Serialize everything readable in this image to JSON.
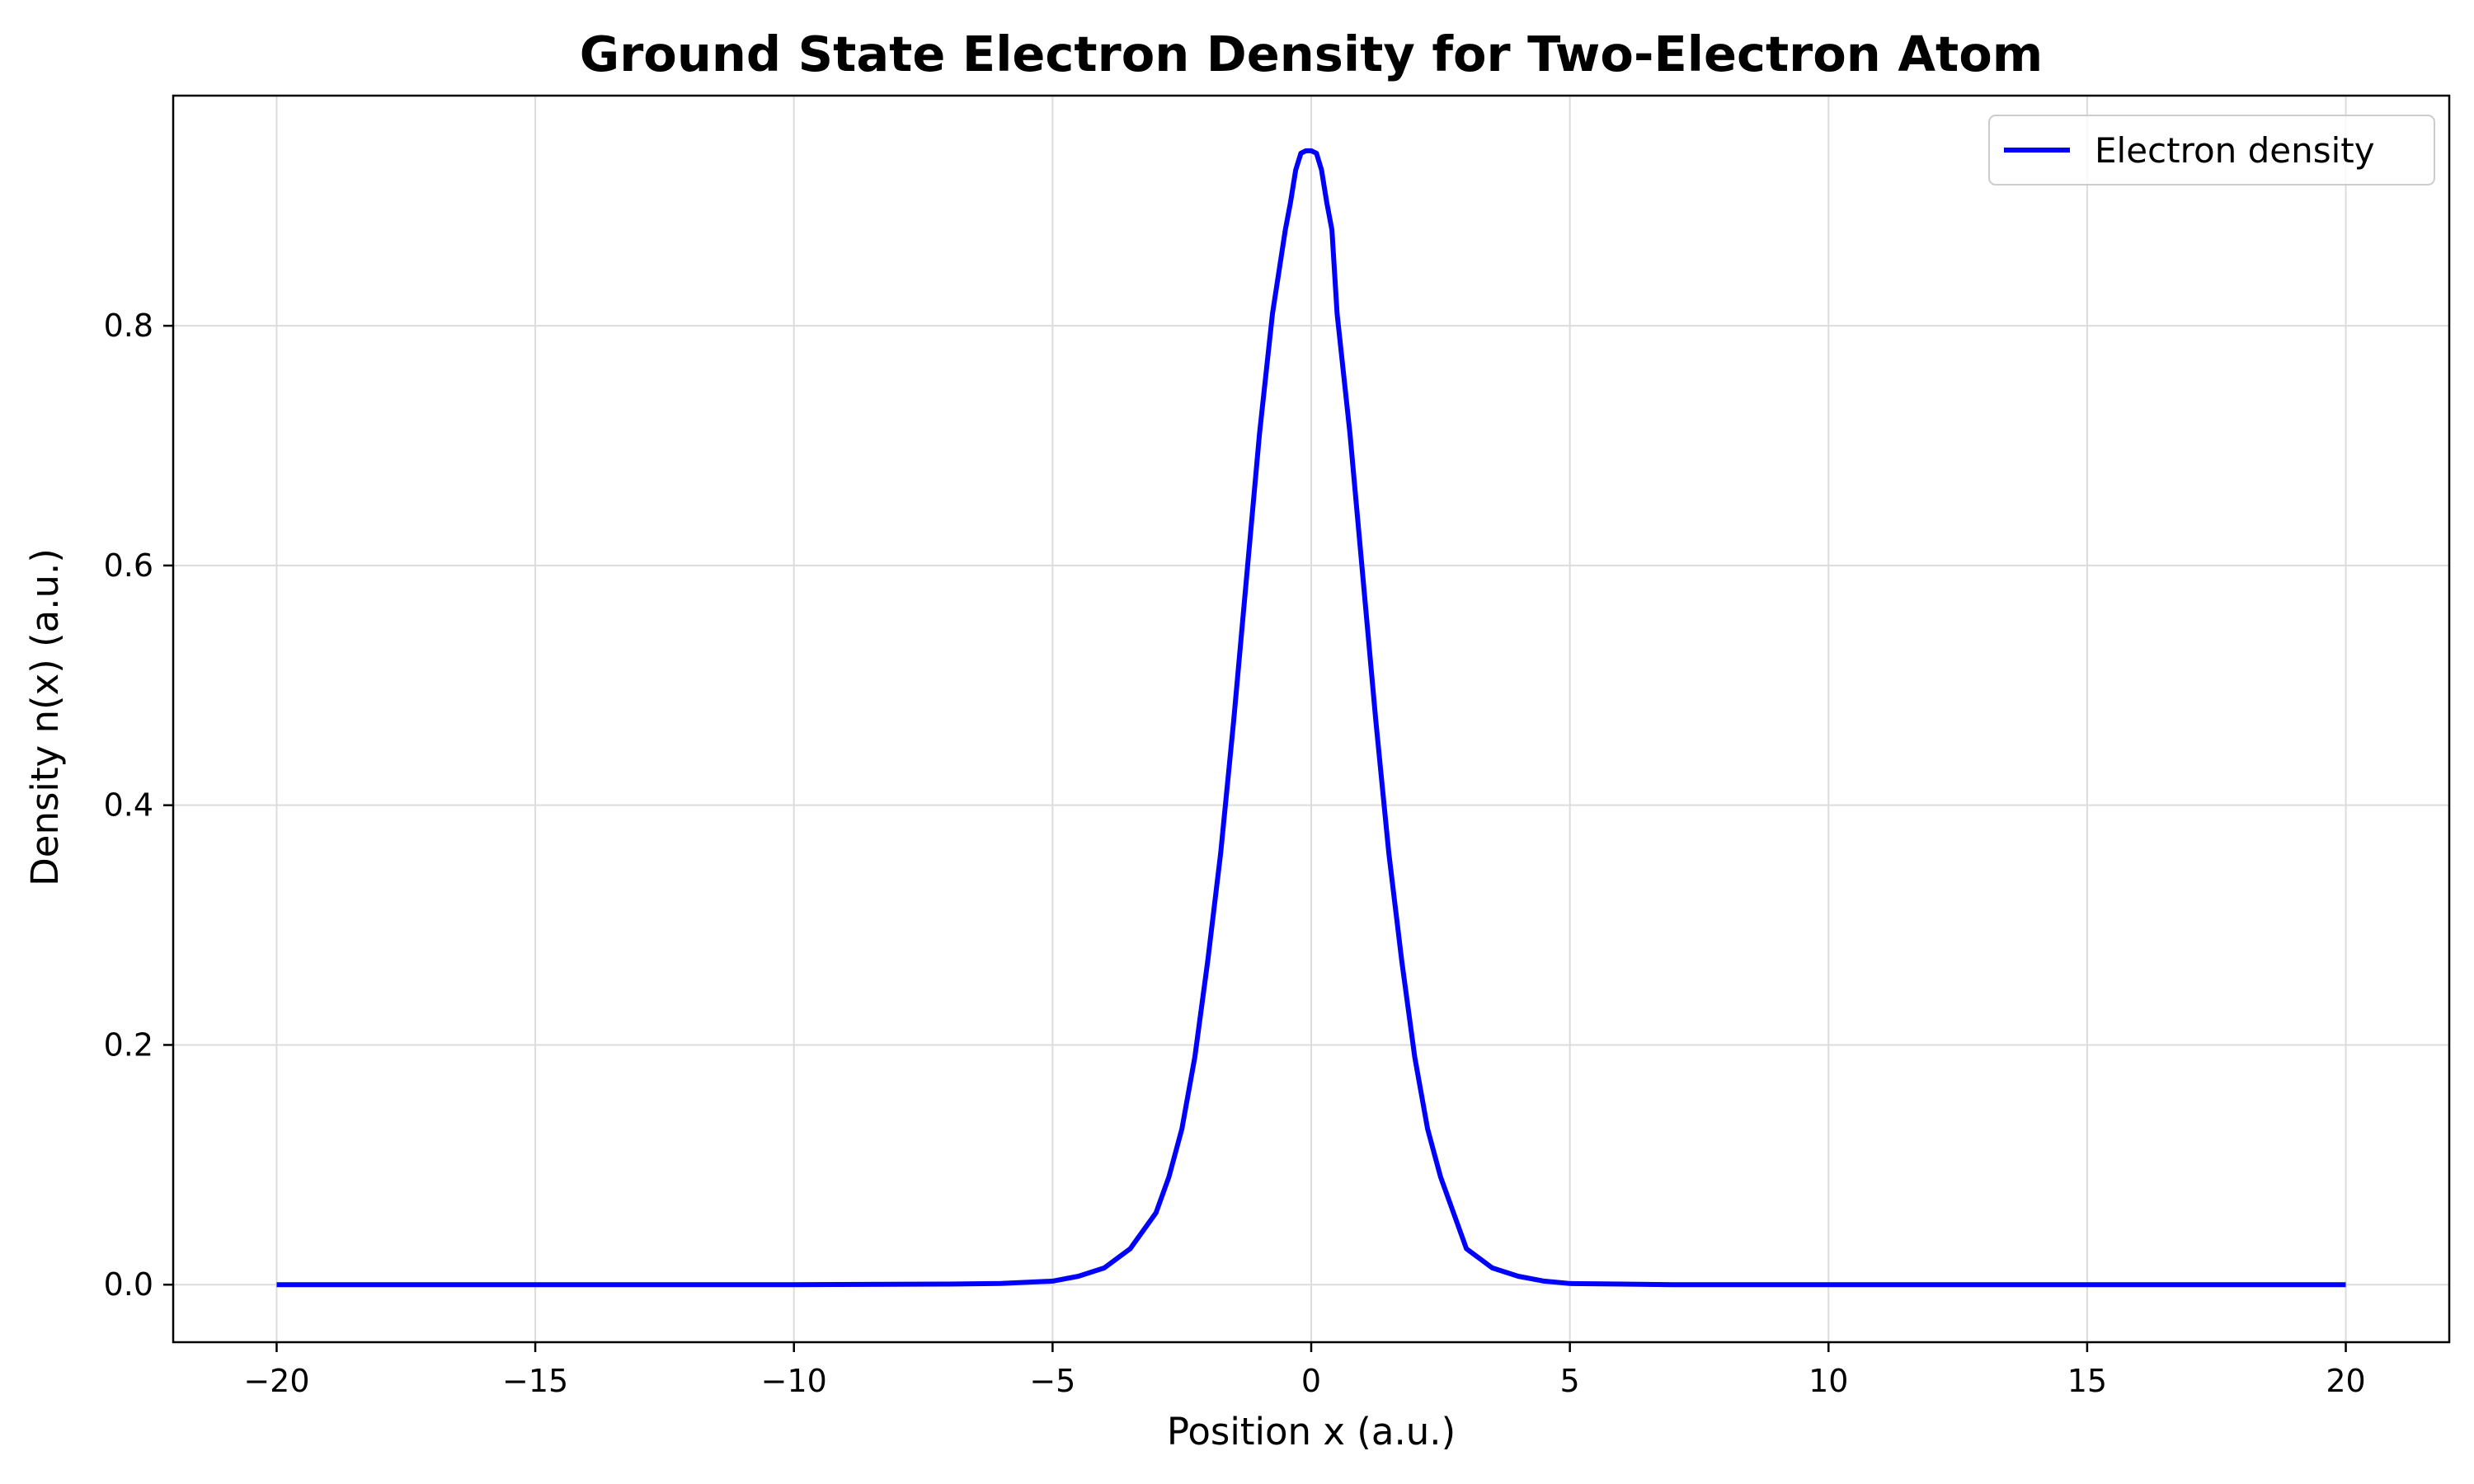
{
  "chart_data": {
    "type": "line",
    "title": "Ground State Electron Density for Two-Electron Atom",
    "xlabel": "Position x (a.u.)",
    "ylabel": "Density n(x) (a.u.)",
    "xlim": [
      -22,
      22
    ],
    "ylim": [
      -0.048,
      0.992
    ],
    "xticks": [
      -20,
      -15,
      -10,
      -5,
      0,
      5,
      10,
      15,
      20
    ],
    "xtick_labels": [
      "−20",
      "−15",
      "−10",
      "−5",
      "0",
      "5",
      "10",
      "15",
      "20"
    ],
    "yticks": [
      0.0,
      0.2,
      0.4,
      0.6,
      0.8
    ],
    "ytick_labels": [
      "0.0",
      "0.2",
      "0.4",
      "0.6",
      "0.8"
    ],
    "grid": true,
    "legend_position": "top-right",
    "series": [
      {
        "name": "Electron density",
        "color": "#0000ff",
        "x": [
          -20,
          -15,
          -10,
          -7,
          -6,
          -5,
          -4.5,
          -4,
          -3.5,
          -3,
          -2.75,
          -2.5,
          -2.25,
          -2,
          -1.75,
          -1.5,
          -1.25,
          -1,
          -0.75,
          -0.5,
          -0.4,
          -0.3,
          -0.2,
          -0.1,
          0,
          0.1,
          0.2,
          0.3,
          0.4,
          0.5,
          0.75,
          1,
          1.25,
          1.5,
          1.75,
          2,
          2.25,
          2.5,
          2.75,
          3,
          3.5,
          4,
          4.5,
          5,
          6,
          7,
          10,
          15,
          20
        ],
        "y": [
          0.0,
          0.0,
          0.0,
          0.0005,
          0.001,
          0.003,
          0.007,
          0.014,
          0.03,
          0.06,
          0.09,
          0.13,
          0.19,
          0.27,
          0.36,
          0.47,
          0.59,
          0.71,
          0.81,
          0.88,
          0.903,
          0.93,
          0.944,
          0.946,
          0.946,
          0.944,
          0.93,
          0.903,
          0.88,
          0.81,
          0.71,
          0.59,
          0.47,
          0.36,
          0.27,
          0.19,
          0.13,
          0.09,
          0.06,
          0.03,
          0.014,
          0.007,
          0.003,
          0.001,
          0.0005,
          0.0,
          0.0,
          0.0,
          0.0
        ]
      }
    ]
  }
}
